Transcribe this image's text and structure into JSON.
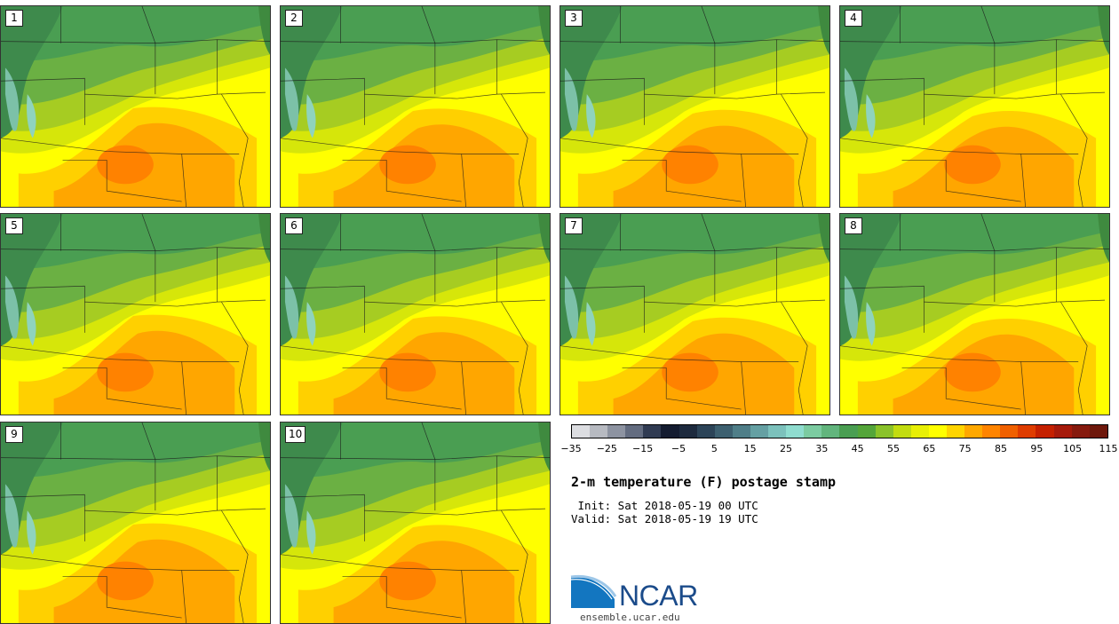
{
  "panels": [
    {
      "label": "1"
    },
    {
      "label": "2"
    },
    {
      "label": "3"
    },
    {
      "label": "4"
    },
    {
      "label": "5"
    },
    {
      "label": "6"
    },
    {
      "label": "7"
    },
    {
      "label": "8"
    },
    {
      "label": "9"
    },
    {
      "label": "10"
    }
  ],
  "colorbar": {
    "colors": [
      "#dcdde1",
      "#b7bac1",
      "#8d93a1",
      "#636c80",
      "#303b52",
      "#141c30",
      "#1d2a3e",
      "#2c4458",
      "#3d6070",
      "#4f7e88",
      "#65a0a3",
      "#7cc1bc",
      "#8fdccf",
      "#7ccba1",
      "#62b57d",
      "#4a9e52",
      "#54a53a",
      "#8ac22a",
      "#c2dc10",
      "#e8ef05",
      "#ffff00",
      "#ffd400",
      "#ffa800",
      "#ff8400",
      "#f06000",
      "#df3c00",
      "#c52000",
      "#a61a0b",
      "#861a0e",
      "#6e180c"
    ],
    "ticks": [
      "−35",
      "−25",
      "−15",
      "−5",
      "5",
      "15",
      "25",
      "35",
      "45",
      "55",
      "65",
      "75",
      "85",
      "95",
      "105",
      "115"
    ]
  },
  "title": "2-m temperature (F) postage stamp",
  "init": " Init: Sat 2018-05-19 00 UTC",
  "valid": "Valid: Sat 2018-05-19 19 UTC",
  "logo_text": "NCAR",
  "website": "ensemble.ucar.edu"
}
